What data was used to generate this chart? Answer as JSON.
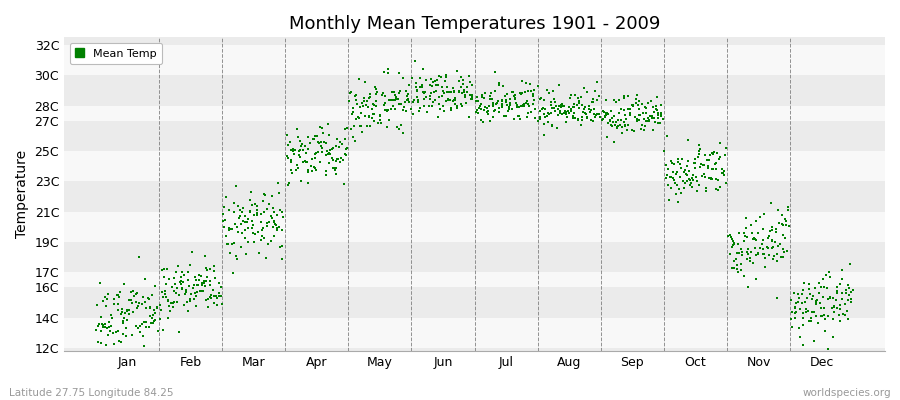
{
  "title": "Monthly Mean Temperatures 1901 - 2009",
  "ylabel": "Temperature",
  "footnote_left": "Latitude 27.75 Longitude 84.25",
  "footnote_right": "worldspecies.org",
  "legend_label": "Mean Temp",
  "dot_color": "#008000",
  "stripe_colors": [
    "#ebebeb",
    "#f8f8f8"
  ],
  "ytick_labels": [
    "12C",
    "14C",
    "16C",
    "17C",
    "19C",
    "21C",
    "23C",
    "25C",
    "27C",
    "28C",
    "30C",
    "32C"
  ],
  "ytick_values": [
    12,
    14,
    16,
    17,
    19,
    21,
    23,
    25,
    27,
    28,
    30,
    32
  ],
  "ylim": [
    11.8,
    32.5
  ],
  "xlim": [
    -0.5,
    12.5
  ],
  "monthly_means": [
    13.8,
    15.5,
    19.8,
    24.5,
    27.8,
    28.6,
    28.0,
    27.6,
    27.2,
    23.5,
    18.5,
    14.5
  ],
  "monthly_stds": [
    1.1,
    1.0,
    1.1,
    0.9,
    0.85,
    0.75,
    0.6,
    0.6,
    0.65,
    0.9,
    1.1,
    1.1
  ],
  "monthly_trends": [
    0.008,
    0.005,
    0.006,
    0.005,
    0.004,
    0.003,
    0.003,
    0.003,
    0.004,
    0.005,
    0.007,
    0.008
  ],
  "n_years": 109,
  "seed": 12
}
